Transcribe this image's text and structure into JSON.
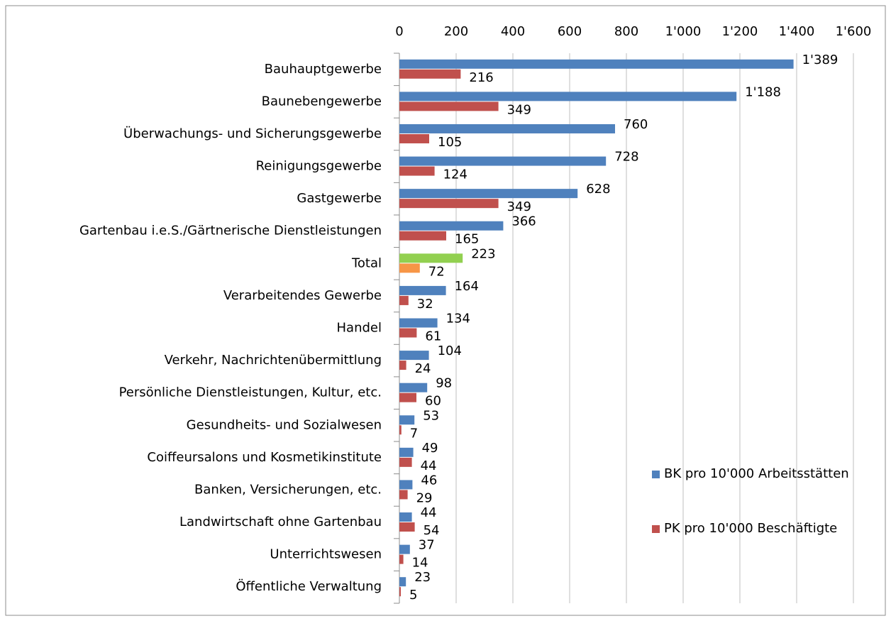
{
  "chart_data": {
    "type": "hbar",
    "categories": [
      "Bauhauptgewerbe",
      "Baunebengewerbe",
      "Überwachungs- und Sicherungsgewerbe",
      "Reinigungsgewerbe",
      "Gastgewerbe",
      "Gartenbau i.e.S./Gärtnerische Dienstleistungen",
      "Total",
      "Verarbeitendes Gewerbe",
      "Handel",
      "Verkehr, Nachrichtenübermittlung",
      "Persönliche Dienstleistungen, Kultur, etc.",
      "Gesundheits- und Sozialwesen",
      "Coiffeursalons und Kosmetikinstitute",
      "Banken, Versicherungen, etc.",
      "Landwirtschaft  ohne Gartenbau",
      "Unterrichtswesen",
      "Öffentliche Verwaltung"
    ],
    "series": [
      {
        "name": "BK pro 10'000 Arbeitsstätten",
        "color": "#4f81bd",
        "colors": [
          "#4f81bd",
          "#4f81bd",
          "#4f81bd",
          "#4f81bd",
          "#4f81bd",
          "#4f81bd",
          "#92d050",
          "#4f81bd",
          "#4f81bd",
          "#4f81bd",
          "#4f81bd",
          "#4f81bd",
          "#4f81bd",
          "#4f81bd",
          "#4f81bd",
          "#4f81bd",
          "#4f81bd"
        ],
        "values": [
          1389,
          1188,
          760,
          728,
          628,
          366,
          223,
          164,
          134,
          104,
          98,
          53,
          49,
          46,
          44,
          37,
          23
        ],
        "value_labels": [
          "1'389",
          "1'188",
          "760",
          "728",
          "628",
          "366",
          "223",
          "164",
          "134",
          "104",
          "98",
          "53",
          "49",
          "46",
          "44",
          "37",
          "23"
        ]
      },
      {
        "name": "PK pro 10'000 Beschäftigte",
        "color": "#c0504d",
        "colors": [
          "#c0504d",
          "#c0504d",
          "#c0504d",
          "#c0504d",
          "#c0504d",
          "#c0504d",
          "#f79646",
          "#c0504d",
          "#c0504d",
          "#c0504d",
          "#c0504d",
          "#c0504d",
          "#c0504d",
          "#c0504d",
          "#c0504d",
          "#c0504d",
          "#c0504d"
        ],
        "values": [
          216,
          349,
          105,
          124,
          349,
          165,
          72,
          32,
          61,
          24,
          60,
          7,
          44,
          29,
          54,
          14,
          5
        ]
      }
    ],
    "xlim": [
      0,
      1600
    ],
    "xticks": [
      0,
      200,
      400,
      600,
      800,
      {
        "value": 1000,
        "label": "1'000"
      },
      {
        "value": 1200,
        "label": "1'200"
      },
      {
        "value": 1400,
        "label": "1'400"
      },
      {
        "value": 1600,
        "label": "1'600"
      }
    ],
    "grid": true,
    "legend": "right"
  }
}
